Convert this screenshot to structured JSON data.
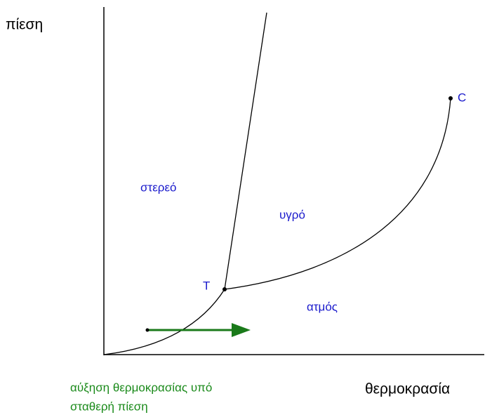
{
  "axes": {
    "y_label": "πίεση",
    "x_label": "θερμοκρασία"
  },
  "regions": {
    "solid": "στερεό",
    "liquid": "υγρό",
    "vapor": "ατμός"
  },
  "points": {
    "triple": "T",
    "critical": "C"
  },
  "annotation": {
    "lines": [
      "αύξηση θερμοκρασίας υπό",
      "σταθερή πίεση"
    ]
  }
}
